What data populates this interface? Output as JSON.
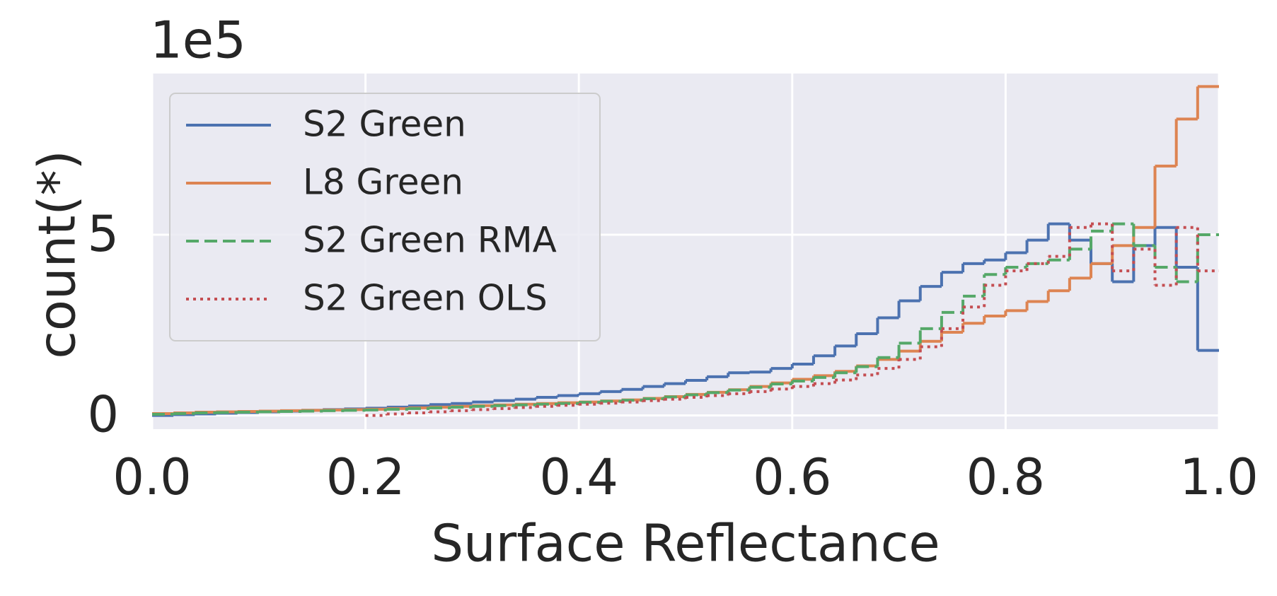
{
  "chart_data": {
    "type": "histogram",
    "x_label": "Surface Reflectance",
    "y_label": "count(*)",
    "y_offset_text": "1e5",
    "bins": [
      0,
      0.02,
      0.04,
      0.06,
      0.08,
      0.1,
      0.12,
      0.14,
      0.16,
      0.18,
      0.2,
      0.22,
      0.24,
      0.26,
      0.28,
      0.3,
      0.32,
      0.34,
      0.36,
      0.38,
      0.4,
      0.42,
      0.44,
      0.46,
      0.48,
      0.5,
      0.52,
      0.54,
      0.56,
      0.58,
      0.6,
      0.62,
      0.64,
      0.66,
      0.68,
      0.7,
      0.72,
      0.74,
      0.76,
      0.78,
      0.8,
      0.82,
      0.84,
      0.86,
      0.88,
      0.9,
      0.92,
      0.94,
      0.96,
      0.98,
      1.0
    ],
    "series": [
      {
        "name": "S2 Green",
        "color": "#4c72b0",
        "dash": "solid",
        "values": [
          0.0,
          0.02,
          0.04,
          0.06,
          0.08,
          0.1,
          0.12,
          0.14,
          0.16,
          0.18,
          0.2,
          0.23,
          0.26,
          0.3,
          0.33,
          0.37,
          0.41,
          0.45,
          0.5,
          0.55,
          0.6,
          0.66,
          0.72,
          0.8,
          0.88,
          0.97,
          1.07,
          1.18,
          1.2,
          1.3,
          1.42,
          1.65,
          1.92,
          2.26,
          2.7,
          3.17,
          3.57,
          3.96,
          4.2,
          4.3,
          4.5,
          4.85,
          5.3,
          4.85,
          4.2,
          3.7,
          4.7,
          5.2,
          4.1,
          1.8
        ]
      },
      {
        "name": "L8 Green",
        "color": "#dd8452",
        "dash": "solid",
        "values": [
          0.05,
          0.07,
          0.09,
          0.1,
          0.11,
          0.12,
          0.13,
          0.14,
          0.15,
          0.16,
          0.17,
          0.19,
          0.21,
          0.23,
          0.25,
          0.27,
          0.29,
          0.31,
          0.33,
          0.35,
          0.37,
          0.4,
          0.43,
          0.47,
          0.52,
          0.58,
          0.64,
          0.71,
          0.8,
          0.9,
          1.0,
          1.1,
          1.22,
          1.37,
          1.55,
          1.78,
          2.05,
          2.3,
          2.55,
          2.75,
          2.9,
          3.15,
          3.45,
          3.8,
          4.2,
          4.7,
          5.2,
          6.9,
          8.2,
          9.1
        ]
      },
      {
        "name": "S2 Green RMA",
        "color": "#55a868",
        "dash": "dashed",
        "values": [
          0.03,
          0.05,
          0.07,
          0.08,
          0.09,
          0.1,
          0.11,
          0.12,
          0.13,
          0.14,
          0.15,
          0.17,
          0.19,
          0.21,
          0.23,
          0.25,
          0.27,
          0.29,
          0.31,
          0.33,
          0.36,
          0.39,
          0.42,
          0.46,
          0.51,
          0.57,
          0.63,
          0.7,
          0.78,
          0.87,
          0.95,
          1.05,
          1.18,
          1.35,
          1.6,
          2.0,
          2.4,
          2.85,
          3.3,
          3.9,
          4.1,
          4.2,
          4.3,
          4.6,
          5.1,
          5.3,
          4.7,
          4.1,
          3.7,
          5.0
        ]
      },
      {
        "name": "S2 Green OLS",
        "color": "#c44e52",
        "dash": "dotted",
        "values": [
          null,
          null,
          null,
          null,
          null,
          null,
          null,
          null,
          null,
          null,
          0.0,
          0.04,
          0.07,
          0.1,
          0.13,
          0.16,
          0.19,
          0.22,
          0.25,
          0.28,
          0.31,
          0.34,
          0.37,
          0.41,
          0.45,
          0.5,
          0.55,
          0.6,
          0.66,
          0.73,
          0.8,
          0.88,
          0.98,
          1.12,
          1.3,
          1.55,
          1.9,
          2.4,
          3.0,
          3.6,
          4.0,
          4.2,
          4.4,
          5.2,
          5.3,
          4.0,
          4.6,
          3.6,
          5.2,
          4.0
        ]
      }
    ],
    "xlim": [
      0,
      1
    ],
    "ylim": [
      -0.38,
      9.46
    ],
    "xticks": [
      {
        "value": 0,
        "label": "0.0"
      },
      0.2,
      0.4,
      0.6,
      0.8,
      {
        "value": 1,
        "label": "1.0"
      }
    ],
    "yticks": [
      0,
      5
    ],
    "grid": true,
    "legend": "upper left"
  }
}
